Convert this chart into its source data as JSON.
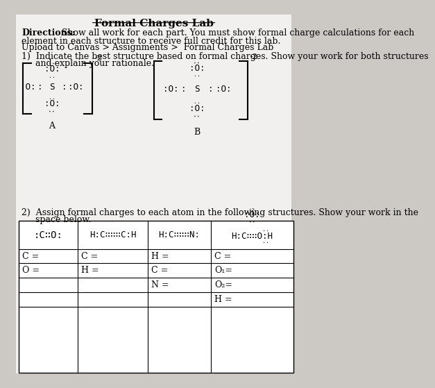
{
  "title": "Formal Charges Lab",
  "bg_color": "#ccc8c4",
  "paper_color": "#f2f0ee",
  "directions_bold": "Directions:",
  "directions_line2": "element in each structure to receive full credit for this lab.",
  "directions_line3": "Upload to Canvas > Assignments >  Formal Charges Lab",
  "q1_line1": "1)  Indicate the best structure based on formal charges. Show your work for both structures",
  "q1_line2": "     and explain your rationale.",
  "q2_line1": "2)  Assign formal charges to each atom in the following structures. Show your work in the",
  "q2_line2": "     space below.",
  "charge_A": "-2",
  "charge_B": "-2",
  "label_A": "A",
  "label_B": "B",
  "table_rows": [
    [
      "C =",
      "C =",
      "H =",
      "C ="
    ],
    [
      "O =",
      "H =",
      "C =",
      "O₁="
    ],
    [
      "",
      "",
      "N =",
      "O₂="
    ],
    [
      "",
      "",
      "",
      "H ="
    ]
  ],
  "font_size_title": 11,
  "font_size_body": 9,
  "font_size_small": 8,
  "font_size_mono": 9
}
